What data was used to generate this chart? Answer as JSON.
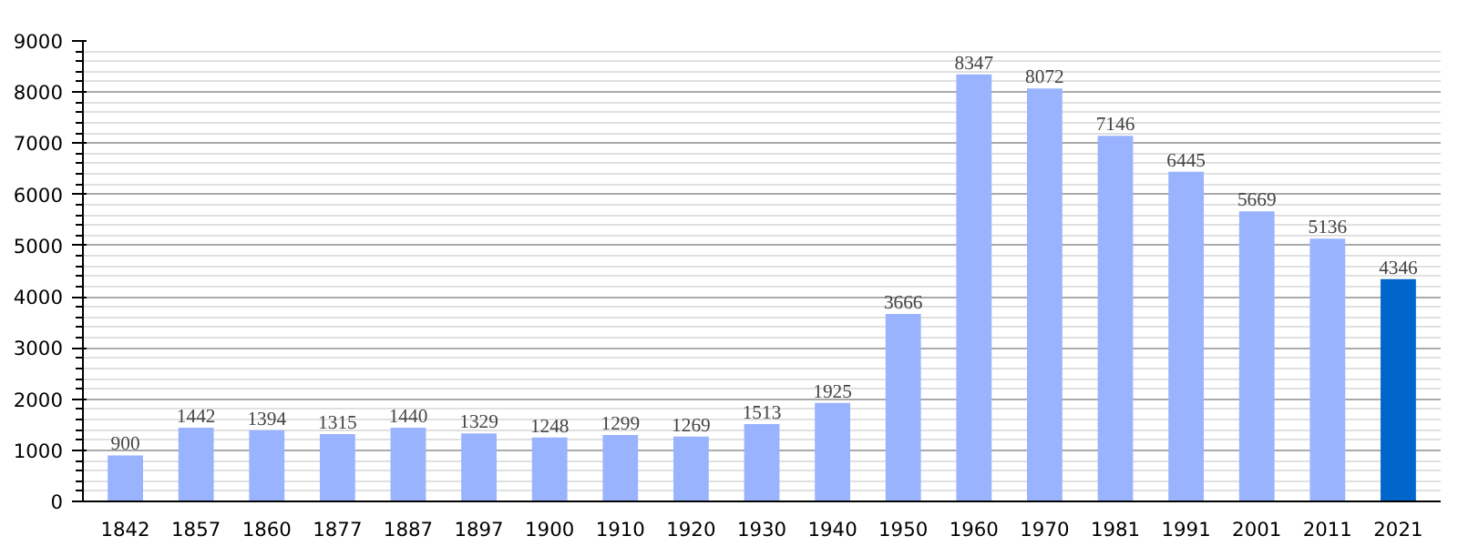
{
  "chart_data": {
    "type": "bar",
    "categories": [
      "1842",
      "1857",
      "1860",
      "1877",
      "1887",
      "1897",
      "1900",
      "1910",
      "1920",
      "1930",
      "1940",
      "1950",
      "1960",
      "1970",
      "1981",
      "1991",
      "2001",
      "2011",
      "2021"
    ],
    "values": [
      900,
      1442,
      1394,
      1315,
      1440,
      1329,
      1248,
      1299,
      1269,
      1513,
      1925,
      3666,
      8347,
      8072,
      7146,
      6445,
      5669,
      5136,
      4346
    ],
    "colors": [
      "#99b3ff",
      "#99b3ff",
      "#99b3ff",
      "#99b3ff",
      "#99b3ff",
      "#99b3ff",
      "#99b3ff",
      "#99b3ff",
      "#99b3ff",
      "#99b3ff",
      "#99b3ff",
      "#99b3ff",
      "#99b3ff",
      "#99b3ff",
      "#99b3ff",
      "#99b3ff",
      "#99b3ff",
      "#99b3ff",
      "#0066cc"
    ],
    "ylim": [
      0,
      9000
    ],
    "yticks": [
      0,
      1000,
      2000,
      3000,
      4000,
      5000,
      6000,
      7000,
      8000,
      9000
    ],
    "grid": "y",
    "data_labels": true
  }
}
